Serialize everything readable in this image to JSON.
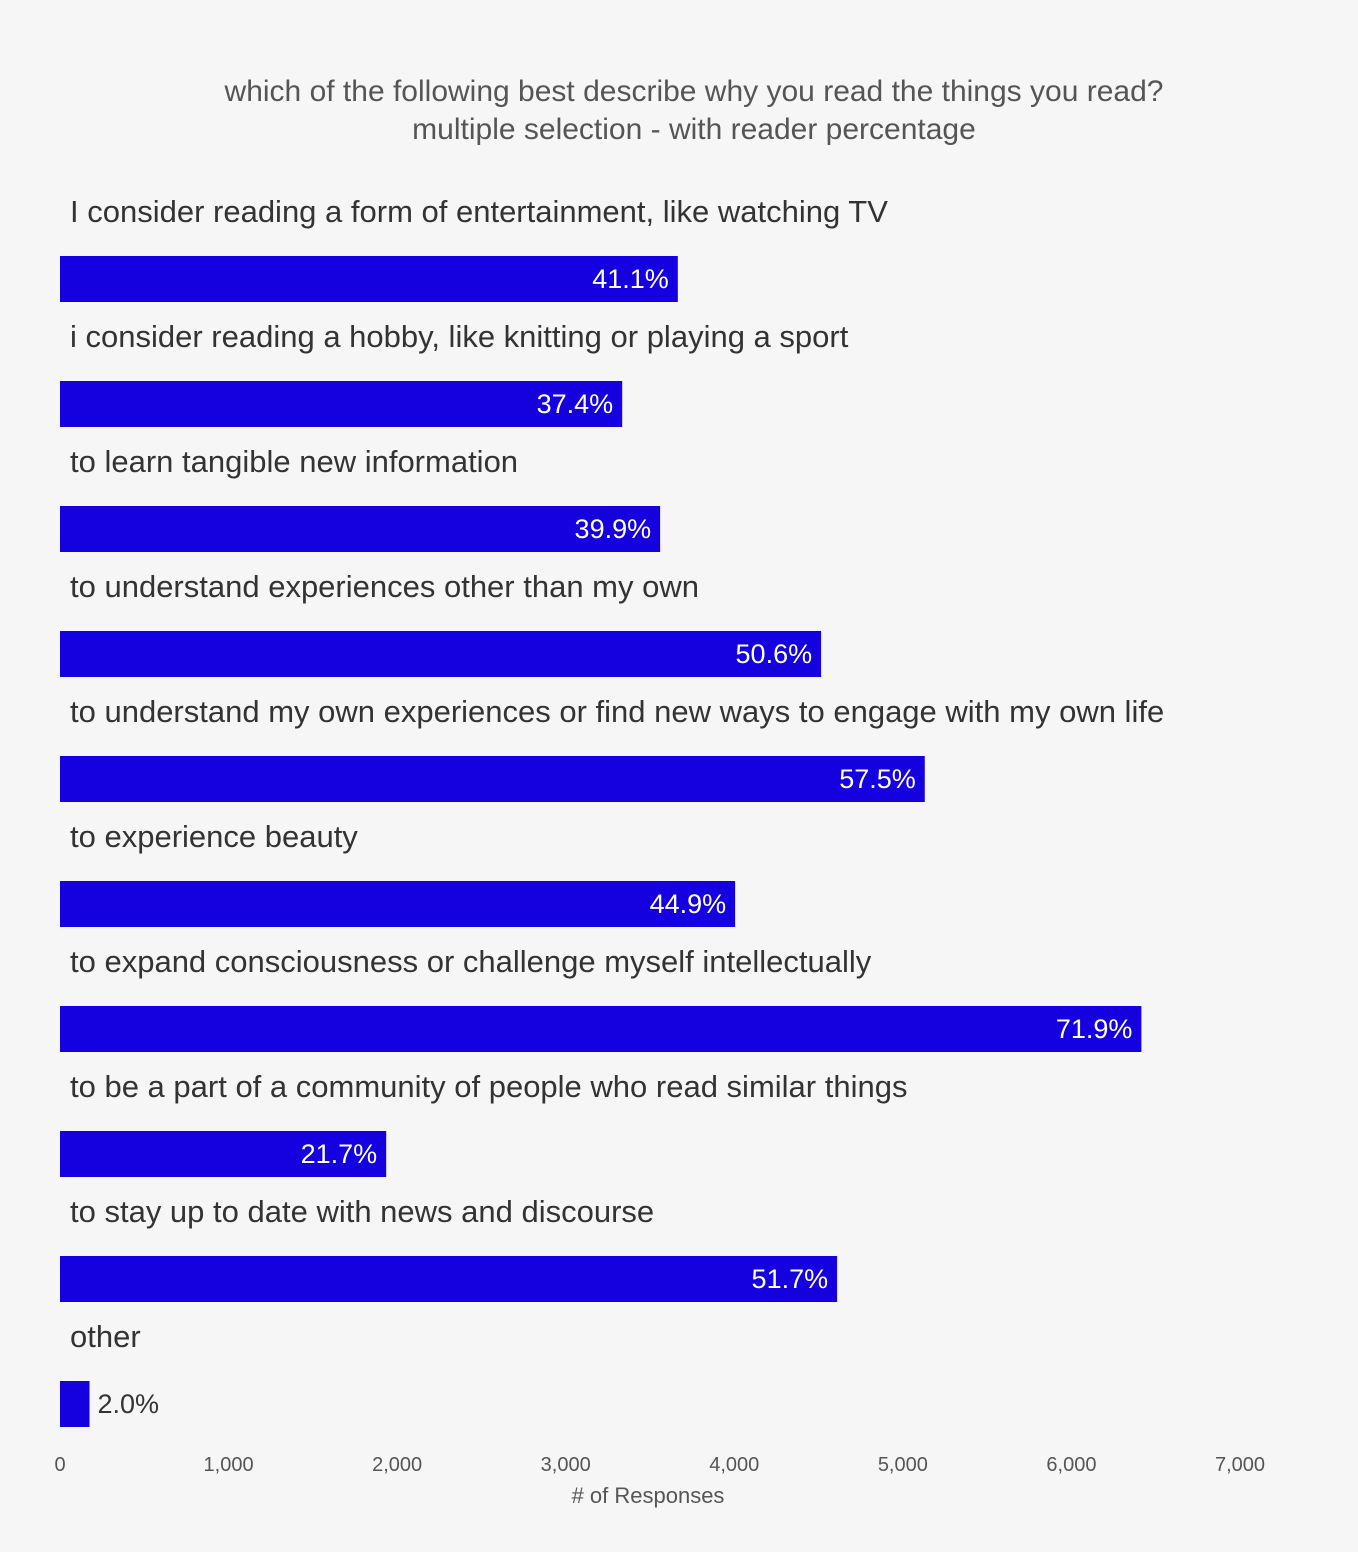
{
  "chart_data": {
    "type": "bar",
    "orientation": "horizontal",
    "title": "which of the following best describe why you read the things you read?",
    "subtitle": "multiple selection - with reader percentage",
    "xlabel": "# of Responses",
    "ylabel": "",
    "xlim": [
      0,
      7000
    ],
    "xticks": [
      0,
      1000,
      2000,
      3000,
      4000,
      5000,
      6000,
      7000
    ],
    "xtick_labels": [
      "0",
      "1,000",
      "2,000",
      "3,000",
      "4,000",
      "5,000",
      "6,000",
      "7,000"
    ],
    "grid": false,
    "legend": "none",
    "bar_color": "#1500e0",
    "categories": [
      "I consider reading a form of entertainment, like watching TV",
      "i consider reading a hobby, like knitting or playing a sport",
      "to learn tangible new information",
      "to understand experiences other than my own",
      "to understand my own experiences or find new ways to engage with my own life",
      "to experience beauty",
      "to expand consciousness or challenge myself intellectually",
      "to be a part of a community of people who read similar things",
      "to stay up to date with news and discourse",
      "other"
    ],
    "values": [
      3665,
      3335,
      3560,
      4515,
      5130,
      4005,
      6415,
      1935,
      4610,
      175
    ],
    "data_labels": [
      "41.1%",
      "37.4%",
      "39.9%",
      "50.6%",
      "57.5%",
      "44.9%",
      "71.9%",
      "21.7%",
      "51.7%",
      "2.0%"
    ]
  }
}
